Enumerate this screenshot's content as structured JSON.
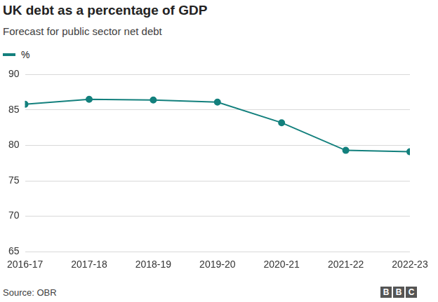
{
  "chart_data": {
    "type": "line",
    "title": "UK debt as a percentage of GDP",
    "subtitle": "Forecast for public sector net debt",
    "categories": [
      "2016-17",
      "2017-18",
      "2018-19",
      "2019-20",
      "2020-21",
      "2021-22",
      "2022-23"
    ],
    "series": [
      {
        "name": "%",
        "color": "#13807d",
        "values": [
          85.8,
          86.5,
          86.4,
          86.1,
          83.2,
          79.3,
          79.1
        ],
        "marker": "circle"
      }
    ],
    "ylim": [
      65,
      90
    ],
    "yticks": [
      65,
      70,
      75,
      80,
      85,
      90
    ],
    "grid": true,
    "source": "Source: OBR",
    "logo": "BBC"
  }
}
